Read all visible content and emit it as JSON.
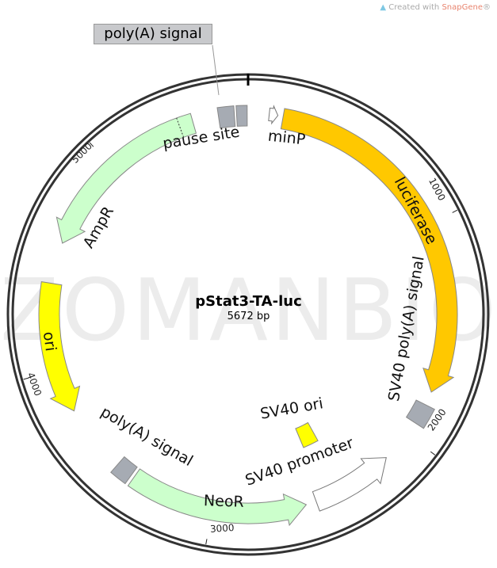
{
  "credit": {
    "prefix": "Created with ",
    "brand": "SnapGene",
    "suffix": "®"
  },
  "watermark": "ZOMANBIO",
  "plasmid": {
    "name": "pStat3-TA-luc",
    "length_label": "5672 bp",
    "length": 5672
  },
  "ticks": [
    {
      "bp": 1000,
      "label": "1000"
    },
    {
      "bp": 2000,
      "label": "2000"
    },
    {
      "bp": 3000,
      "label": "3000"
    },
    {
      "bp": 4000,
      "label": "4000"
    },
    {
      "bp": 5000,
      "label": "5000"
    }
  ],
  "features": [
    {
      "name": "luciferase",
      "start": 158,
      "end": 1780,
      "direction": "cw",
      "type": "arrow",
      "color": "#ffc800"
    },
    {
      "name": "minP",
      "start": 95,
      "end": 134,
      "direction": "cw",
      "type": "arrow",
      "color": "#ffffff"
    },
    {
      "name": "SV40 poly(A) signal",
      "start": 1843,
      "end": 1938,
      "type": "box",
      "color": "#a6abb3"
    },
    {
      "name": "SV40 promoter",
      "start": 2143,
      "end": 2521,
      "direction": "ccw",
      "type": "arrow",
      "color": "#ffffff"
    },
    {
      "name": "SV40 ori",
      "start": 2380,
      "end": 2480,
      "type": "inner-box",
      "color": "#ffff00"
    },
    {
      "name": "NeoR",
      "start": 2568,
      "end": 3388,
      "direction": "ccw",
      "type": "arrow",
      "color": "#ccffcc"
    },
    {
      "name": "poly(A) signal",
      "start": 3403,
      "end": 3482,
      "type": "box",
      "color": "#a6abb3"
    },
    {
      "name": "ori",
      "start": 3797,
      "end": 4396,
      "direction": "ccw",
      "type": "arrow",
      "color": "#ffff00"
    },
    {
      "name": "AmpR",
      "start": 4585,
      "end": 5420,
      "direction": "ccw",
      "type": "arrow",
      "color": "#ccffcc"
    },
    {
      "name": "poly(A) signal",
      "start": 5538,
      "end": 5610,
      "type": "box",
      "color": "#a6abb3"
    },
    {
      "name": "pause site",
      "start": 5620,
      "end": 5668,
      "type": "box",
      "color": "#a6abb3"
    }
  ],
  "labels": {
    "callout_polya": "poly(A) signal",
    "pause_site": "pause site",
    "minp": "minP",
    "luciferase": "luciferase",
    "sv40_polya": "SV40 poly(A) signal",
    "sv40_ori": "SV40 ori",
    "sv40_promoter": "SV40 promoter",
    "neor": "NeoR",
    "polya_lower": "poly(A) signal",
    "ori": "ori",
    "ampr": "AmpR"
  }
}
